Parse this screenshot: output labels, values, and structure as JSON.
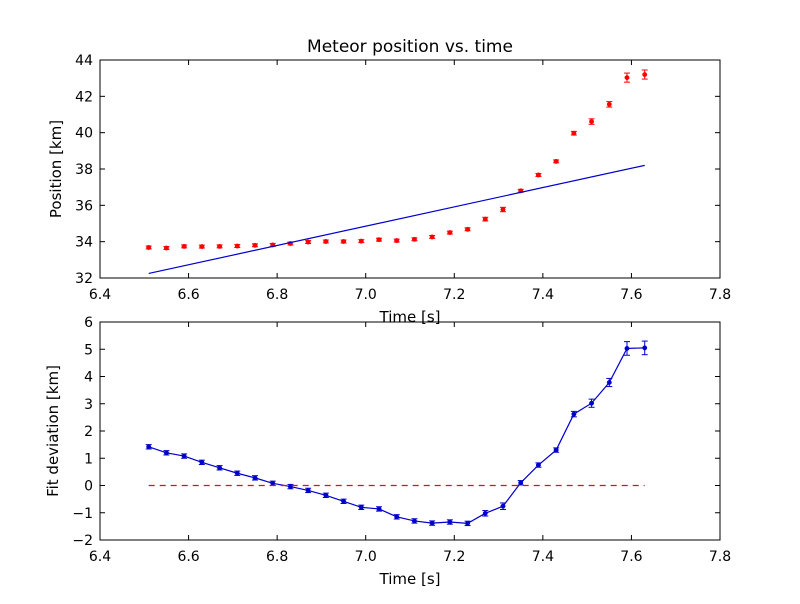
{
  "chart_data": [
    {
      "type": "scatter",
      "title": "Meteor position vs. time",
      "xlabel": "Time [s]",
      "ylabel": "Position [km]",
      "xlim": [
        6.4,
        7.8
      ],
      "ylim": [
        32,
        44
      ],
      "xticks": [
        "6.4",
        "6.6",
        "6.8",
        "7.0",
        "7.2",
        "7.4",
        "7.6",
        "7.8"
      ],
      "yticks": [
        "32",
        "34",
        "36",
        "38",
        "40",
        "42",
        "44"
      ],
      "series": [
        {
          "kind": "errorbar-points",
          "color": "#ff0000",
          "x": [
            6.51,
            6.55,
            6.59,
            6.63,
            6.67,
            6.71,
            6.75,
            6.79,
            6.83,
            6.87,
            6.91,
            6.95,
            6.99,
            7.03,
            7.07,
            7.11,
            7.15,
            7.19,
            7.23,
            7.27,
            7.31,
            7.35,
            7.39,
            7.43,
            7.47,
            7.51,
            7.55,
            7.59,
            7.63
          ],
          "y": [
            33.68,
            33.65,
            33.74,
            33.73,
            33.74,
            33.76,
            33.8,
            33.82,
            33.9,
            33.98,
            34.01,
            34.01,
            34.03,
            34.11,
            34.06,
            34.13,
            34.26,
            34.5,
            34.68,
            35.24,
            35.77,
            36.8,
            37.67,
            38.42,
            39.97,
            40.61,
            41.56,
            43.03,
            43.2
          ],
          "yerr": [
            0.08,
            0.08,
            0.08,
            0.08,
            0.08,
            0.08,
            0.08,
            0.08,
            0.08,
            0.08,
            0.08,
            0.08,
            0.08,
            0.08,
            0.08,
            0.08,
            0.08,
            0.08,
            0.08,
            0.1,
            0.12,
            0.08,
            0.08,
            0.08,
            0.1,
            0.15,
            0.15,
            0.25,
            0.25
          ]
        },
        {
          "kind": "line",
          "color": "#0000cc",
          "x": [
            6.51,
            7.63
          ],
          "y": [
            32.25,
            38.2
          ]
        }
      ]
    },
    {
      "type": "line",
      "xlabel": "Time [s]",
      "ylabel": "Fit deviation [km]",
      "xlim": [
        6.4,
        7.8
      ],
      "ylim": [
        -2,
        6
      ],
      "xticks": [
        "6.4",
        "6.6",
        "6.8",
        "7.0",
        "7.2",
        "7.4",
        "7.6",
        "7.8"
      ],
      "yticks": [
        "−2",
        "−1",
        "0",
        "1",
        "2",
        "3",
        "4",
        "5",
        "6"
      ],
      "series": [
        {
          "kind": "errorbar-line",
          "color": "#0000cc",
          "x": [
            6.51,
            6.55,
            6.59,
            6.63,
            6.67,
            6.71,
            6.75,
            6.79,
            6.83,
            6.87,
            6.91,
            6.95,
            6.99,
            7.03,
            7.07,
            7.11,
            7.15,
            7.19,
            7.23,
            7.27,
            7.31,
            7.35,
            7.39,
            7.43,
            7.47,
            7.51,
            7.55,
            7.59,
            7.63
          ],
          "y": [
            1.42,
            1.2,
            1.08,
            0.85,
            0.65,
            0.45,
            0.28,
            0.08,
            -0.04,
            -0.18,
            -0.36,
            -0.58,
            -0.8,
            -0.86,
            -1.15,
            -1.3,
            -1.38,
            -1.34,
            -1.39,
            -1.02,
            -0.76,
            0.1,
            0.75,
            1.3,
            2.62,
            3.02,
            3.78,
            5.03,
            5.05
          ],
          "yerr": [
            0.08,
            0.08,
            0.08,
            0.08,
            0.08,
            0.08,
            0.08,
            0.08,
            0.08,
            0.08,
            0.08,
            0.08,
            0.08,
            0.08,
            0.08,
            0.08,
            0.08,
            0.08,
            0.08,
            0.1,
            0.12,
            0.08,
            0.08,
            0.08,
            0.1,
            0.15,
            0.15,
            0.25,
            0.25
          ]
        },
        {
          "kind": "dashed-line",
          "color": "#ff0000",
          "x": [
            6.51,
            7.63
          ],
          "y": [
            0,
            0
          ]
        }
      ]
    }
  ]
}
